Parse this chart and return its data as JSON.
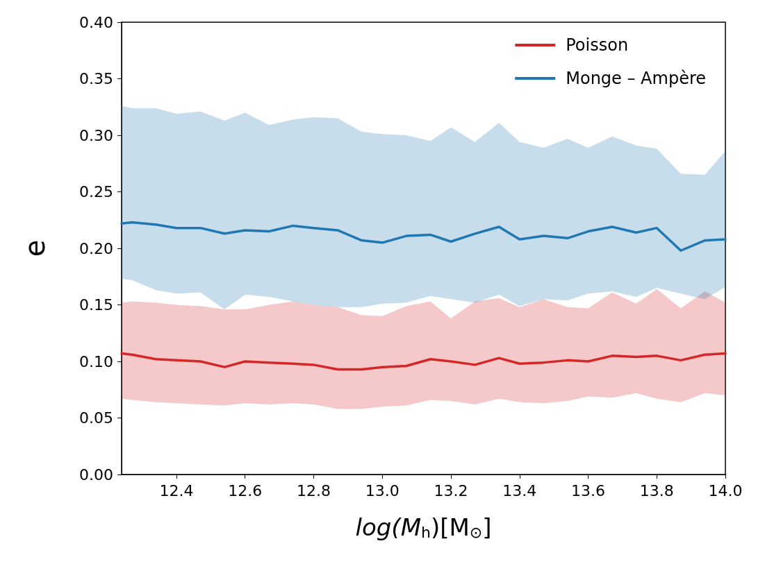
{
  "chart_data": {
    "type": "line",
    "xlabel": "log(M$_{h}$)[M$_{⊙}$]",
    "ylabel": "e",
    "x": [
      12.24,
      12.27,
      12.34,
      12.4,
      12.47,
      12.54,
      12.6,
      12.67,
      12.74,
      12.8,
      12.87,
      12.94,
      13.0,
      13.07,
      13.14,
      13.2,
      13.27,
      13.34,
      13.4,
      13.47,
      13.54,
      13.6,
      13.67,
      13.74,
      13.8,
      13.87,
      13.94,
      14.0
    ],
    "series": [
      {
        "name": "Poisson",
        "color": "#d62728",
        "values": [
          0.107,
          0.106,
          0.102,
          0.101,
          0.1,
          0.095,
          0.1,
          0.099,
          0.098,
          0.097,
          0.093,
          0.093,
          0.095,
          0.096,
          0.102,
          0.1,
          0.097,
          0.103,
          0.098,
          0.099,
          0.101,
          0.1,
          0.105,
          0.104,
          0.105,
          0.101,
          0.106,
          0.107
        ],
        "lower": [
          0.067,
          0.066,
          0.064,
          0.063,
          0.062,
          0.061,
          0.063,
          0.062,
          0.063,
          0.062,
          0.058,
          0.058,
          0.06,
          0.061,
          0.066,
          0.065,
          0.062,
          0.067,
          0.064,
          0.063,
          0.065,
          0.069,
          0.068,
          0.072,
          0.067,
          0.064,
          0.072,
          0.07
        ],
        "upper": [
          0.152,
          0.153,
          0.152,
          0.15,
          0.149,
          0.146,
          0.146,
          0.15,
          0.153,
          0.15,
          0.148,
          0.141,
          0.14,
          0.149,
          0.153,
          0.138,
          0.153,
          0.156,
          0.148,
          0.155,
          0.148,
          0.147,
          0.161,
          0.151,
          0.164,
          0.147,
          0.162,
          0.152
        ]
      },
      {
        "name": "Monge – Ampère",
        "color": "#1f77b4",
        "values": [
          0.222,
          0.223,
          0.221,
          0.218,
          0.218,
          0.213,
          0.216,
          0.215,
          0.22,
          0.218,
          0.216,
          0.207,
          0.205,
          0.211,
          0.212,
          0.206,
          0.213,
          0.219,
          0.208,
          0.211,
          0.209,
          0.215,
          0.219,
          0.214,
          0.218,
          0.198,
          0.207,
          0.208
        ],
        "lower": [
          0.173,
          0.172,
          0.163,
          0.16,
          0.161,
          0.146,
          0.159,
          0.157,
          0.153,
          0.15,
          0.148,
          0.148,
          0.151,
          0.152,
          0.158,
          0.155,
          0.152,
          0.159,
          0.149,
          0.155,
          0.154,
          0.16,
          0.162,
          0.157,
          0.165,
          0.16,
          0.155,
          0.166
        ],
        "upper": [
          0.326,
          0.324,
          0.324,
          0.319,
          0.321,
          0.313,
          0.32,
          0.309,
          0.314,
          0.316,
          0.315,
          0.303,
          0.301,
          0.3,
          0.295,
          0.307,
          0.294,
          0.311,
          0.294,
          0.289,
          0.297,
          0.289,
          0.299,
          0.291,
          0.288,
          0.266,
          0.265,
          0.286
        ]
      }
    ],
    "xlim": [
      12.24,
      14.0
    ],
    "xticks": [
      12.4,
      12.6,
      12.8,
      {
        "value": 13,
        "label": "13.0"
      },
      13.2,
      13.4,
      13.6,
      13.8,
      {
        "value": 14,
        "label": "14.0"
      }
    ],
    "ylim": [
      0,
      0.4
    ],
    "yticks": [
      {
        "value": 0,
        "label": "0.00"
      },
      0.05,
      {
        "value": 0.1,
        "label": "0.10"
      },
      0.15,
      {
        "value": 0.2,
        "label": "0.20"
      },
      0.25,
      {
        "value": 0.3,
        "label": "0.30"
      },
      0.35,
      {
        "value": 0.4,
        "label": "0.40"
      }
    ],
    "grid": false,
    "legend": "top right",
    "marker": "none",
    "line_style": "solid"
  }
}
